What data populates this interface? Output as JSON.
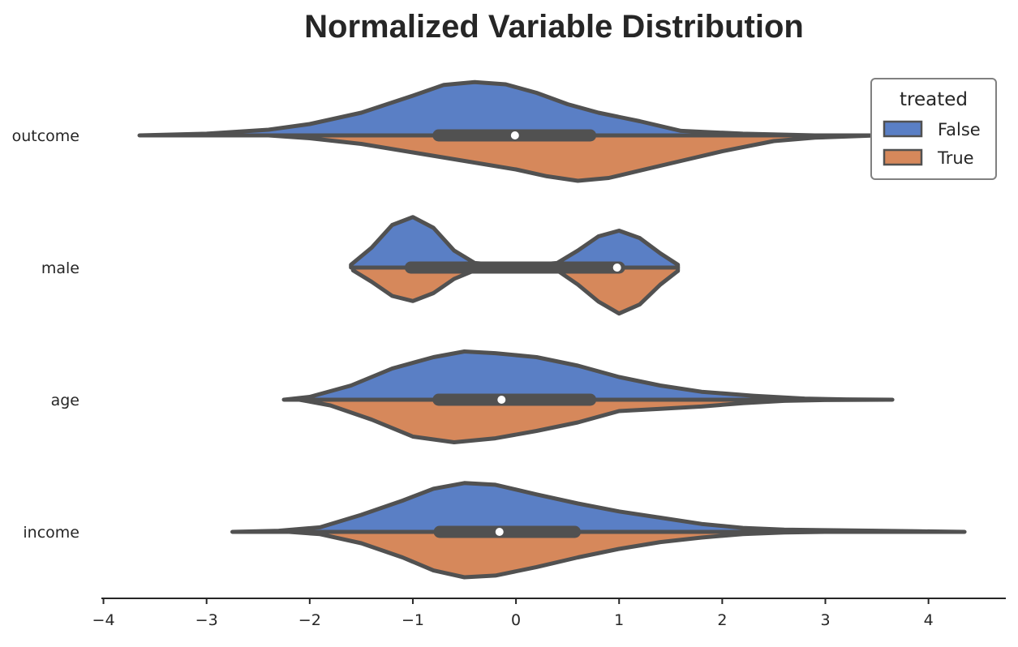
{
  "chart_data": {
    "type": "violin",
    "title": "Normalized Variable Distribution",
    "xlabel": "",
    "ylabel": "",
    "xlim": [
      -4.02,
      4.75
    ],
    "xticks": [
      -4,
      -3,
      -2,
      -1,
      0,
      1,
      2,
      3,
      4
    ],
    "xtick_labels": [
      "−4",
      "−3",
      "−2",
      "−1",
      "0",
      "1",
      "2",
      "3",
      "4"
    ],
    "categories": [
      "outcome",
      "male",
      "age",
      "income"
    ],
    "grid": false,
    "legend": {
      "title": "treated",
      "position": "top-right",
      "entries": [
        "False",
        "True"
      ]
    },
    "series": [
      {
        "name": "False",
        "color": "#5a7fc5",
        "violins": [
          {
            "points": [
              [
                -3.65,
                0
              ],
              [
                -3.0,
                0.03
              ],
              [
                -2.4,
                0.1
              ],
              [
                -2.0,
                0.2
              ],
              [
                -1.5,
                0.4
              ],
              [
                -1.0,
                0.7
              ],
              [
                -0.7,
                0.89
              ],
              [
                -0.4,
                0.94
              ],
              [
                -0.1,
                0.9
              ],
              [
                0.2,
                0.75
              ],
              [
                0.5,
                0.55
              ],
              [
                0.8,
                0.4
              ],
              [
                1.2,
                0.25
              ],
              [
                1.6,
                0.08
              ],
              [
                2.2,
                0.03
              ],
              [
                2.9,
                0
              ]
            ]
          },
          {
            "points": [
              [
                -1.6,
                0.05
              ],
              [
                -1.4,
                0.35
              ],
              [
                -1.2,
                0.75
              ],
              [
                -1.0,
                0.89
              ],
              [
                -0.8,
                0.7
              ],
              [
                -0.6,
                0.3
              ],
              [
                -0.4,
                0.08
              ],
              [
                0.0,
                0.02
              ],
              [
                0.4,
                0.08
              ],
              [
                0.6,
                0.3
              ],
              [
                0.8,
                0.55
              ],
              [
                1.0,
                0.65
              ],
              [
                1.2,
                0.52
              ],
              [
                1.4,
                0.25
              ],
              [
                1.57,
                0.05
              ]
            ]
          },
          {
            "points": [
              [
                -2.25,
                0
              ],
              [
                -2.0,
                0.05
              ],
              [
                -1.6,
                0.25
              ],
              [
                -1.2,
                0.55
              ],
              [
                -0.8,
                0.75
              ],
              [
                -0.5,
                0.85
              ],
              [
                -0.2,
                0.82
              ],
              [
                0.2,
                0.75
              ],
              [
                0.6,
                0.6
              ],
              [
                1.0,
                0.4
              ],
              [
                1.4,
                0.25
              ],
              [
                1.8,
                0.14
              ],
              [
                2.3,
                0.07
              ],
              [
                2.8,
                0.02
              ],
              [
                3.2,
                0.005
              ],
              [
                3.65,
                0
              ]
            ]
          },
          {
            "points": [
              [
                -2.75,
                0
              ],
              [
                -2.3,
                0.02
              ],
              [
                -1.9,
                0.08
              ],
              [
                -1.5,
                0.3
              ],
              [
                -1.1,
                0.55
              ],
              [
                -0.8,
                0.76
              ],
              [
                -0.5,
                0.86
              ],
              [
                -0.2,
                0.83
              ],
              [
                0.2,
                0.66
              ],
              [
                0.6,
                0.5
              ],
              [
                1.0,
                0.36
              ],
              [
                1.4,
                0.25
              ],
              [
                1.8,
                0.14
              ],
              [
                2.2,
                0.07
              ],
              [
                2.6,
                0.04
              ],
              [
                3.0,
                0.03
              ],
              [
                3.5,
                0.02
              ],
              [
                3.9,
                0.01
              ],
              [
                4.35,
                0
              ]
            ]
          }
        ]
      },
      {
        "name": "True",
        "color": "#d6885b",
        "violins": [
          {
            "points": [
              [
                -2.4,
                0
              ],
              [
                -2.0,
                0.05
              ],
              [
                -1.5,
                0.15
              ],
              [
                -1.0,
                0.3
              ],
              [
                -0.5,
                0.45
              ],
              [
                0.0,
                0.6
              ],
              [
                0.3,
                0.72
              ],
              [
                0.6,
                0.8
              ],
              [
                0.9,
                0.75
              ],
              [
                1.2,
                0.62
              ],
              [
                1.6,
                0.45
              ],
              [
                2.0,
                0.28
              ],
              [
                2.5,
                0.1
              ],
              [
                2.9,
                0.04
              ],
              [
                3.5,
                0
              ]
            ]
          },
          {
            "points": [
              [
                -1.58,
                0.05
              ],
              [
                -1.4,
                0.25
              ],
              [
                -1.2,
                0.5
              ],
              [
                -1.0,
                0.59
              ],
              [
                -0.8,
                0.45
              ],
              [
                -0.6,
                0.2
              ],
              [
                -0.4,
                0.05
              ],
              [
                0.0,
                0.01
              ],
              [
                0.4,
                0.05
              ],
              [
                0.6,
                0.3
              ],
              [
                0.8,
                0.6
              ],
              [
                1.0,
                0.81
              ],
              [
                1.2,
                0.65
              ],
              [
                1.4,
                0.3
              ],
              [
                1.57,
                0.06
              ]
            ]
          },
          {
            "points": [
              [
                -2.1,
                0
              ],
              [
                -1.8,
                0.1
              ],
              [
                -1.4,
                0.35
              ],
              [
                -1.0,
                0.65
              ],
              [
                -0.6,
                0.75
              ],
              [
                -0.2,
                0.68
              ],
              [
                0.2,
                0.55
              ],
              [
                0.6,
                0.4
              ],
              [
                1.0,
                0.2
              ],
              [
                1.4,
                0.16
              ],
              [
                1.8,
                0.12
              ],
              [
                2.2,
                0.06
              ],
              [
                2.6,
                0.02
              ],
              [
                3.0,
                0.005
              ],
              [
                3.6,
                0
              ]
            ]
          },
          {
            "points": [
              [
                -2.2,
                0
              ],
              [
                -1.9,
                0.04
              ],
              [
                -1.5,
                0.2
              ],
              [
                -1.1,
                0.45
              ],
              [
                -0.8,
                0.68
              ],
              [
                -0.5,
                0.8
              ],
              [
                -0.2,
                0.77
              ],
              [
                0.2,
                0.62
              ],
              [
                0.6,
                0.45
              ],
              [
                1.0,
                0.3
              ],
              [
                1.4,
                0.18
              ],
              [
                1.8,
                0.1
              ],
              [
                2.2,
                0.04
              ],
              [
                2.6,
                0.01
              ],
              [
                3.0,
                0
              ]
            ]
          }
        ]
      }
    ],
    "boxes": [
      {
        "category": "outcome",
        "whisker": [
          -2.42,
          2.48
        ],
        "iqr": [
          -0.75,
          0.72
        ],
        "median": -0.01
      },
      {
        "category": "male",
        "whisker": [
          -1.58,
          1.57
        ],
        "iqr": [
          -1.02,
          1.0
        ],
        "median": 0.98
      },
      {
        "category": "age",
        "whisker": [
          -2.1,
          2.5
        ],
        "iqr": [
          -0.75,
          0.72
        ],
        "median": -0.14
      },
      {
        "category": "income",
        "whisker": [
          -2.05,
          2.22
        ],
        "iqr": [
          -0.74,
          0.57
        ],
        "median": -0.16
      }
    ],
    "colors": {
      "outline": "#515151",
      "axis": "#262626",
      "legend_border": "#808080",
      "median_dot": "#ffffff"
    }
  }
}
